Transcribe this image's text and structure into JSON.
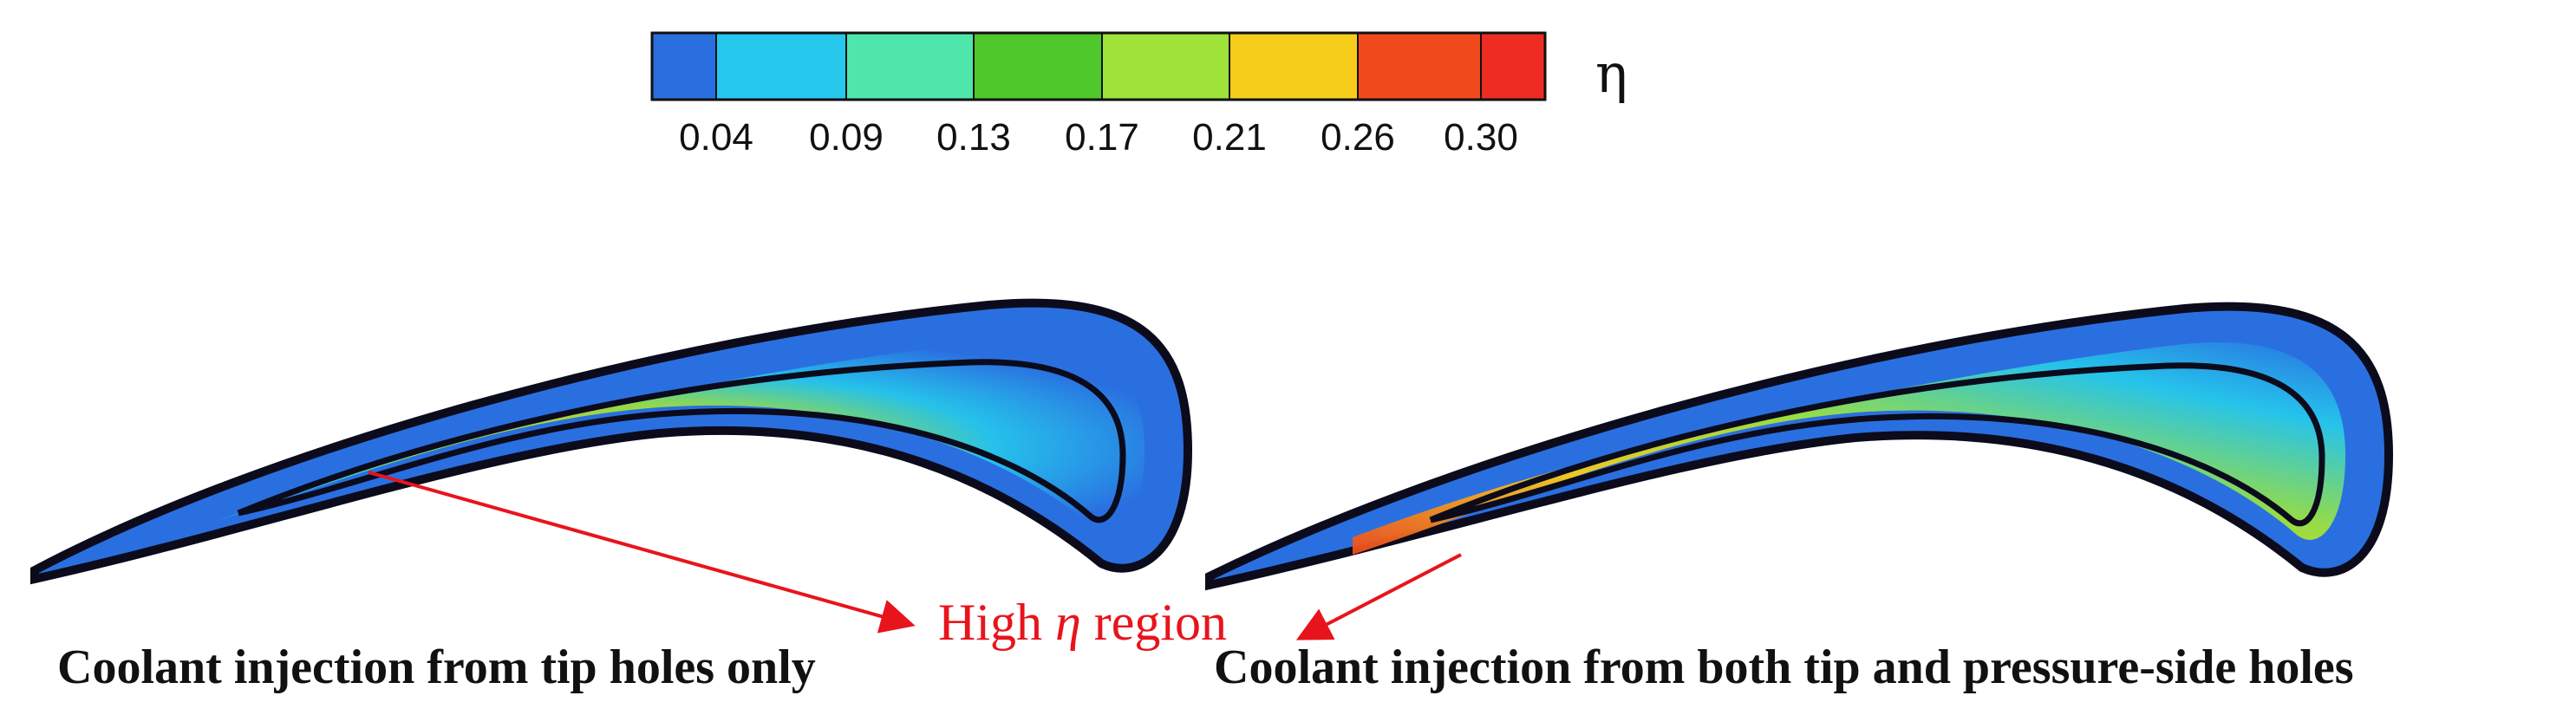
{
  "colorbar": {
    "symbol": "η",
    "tick_labels": [
      "0.04",
      "0.09",
      "0.13",
      "0.17",
      "0.21",
      "0.26",
      "0.30"
    ],
    "colors": [
      "#2a6fe0",
      "#25c8ec",
      "#4fe6ac",
      "#4fc82c",
      "#9ee23a",
      "#f7cd1c",
      "#f04a1c",
      "#ee2c22"
    ]
  },
  "annotation": {
    "text_before": "High ",
    "symbol": "η",
    "text_after": " region",
    "color": "#e8141c"
  },
  "panels": {
    "left": {
      "caption": "Coolant injection from tip holes only",
      "fill_colors": {
        "base": "#2a6fe0",
        "mid": "#4fe6ac",
        "high": "#f7cd1c",
        "hot": "#f04a1c"
      }
    },
    "right": {
      "caption": "Coolant injection from both tip and pressure-side holes",
      "fill_colors": {
        "base": "#2a6fe0",
        "mid": "#9ee23a",
        "high": "#f7cd1c",
        "hot": "#f04a1c"
      }
    }
  }
}
